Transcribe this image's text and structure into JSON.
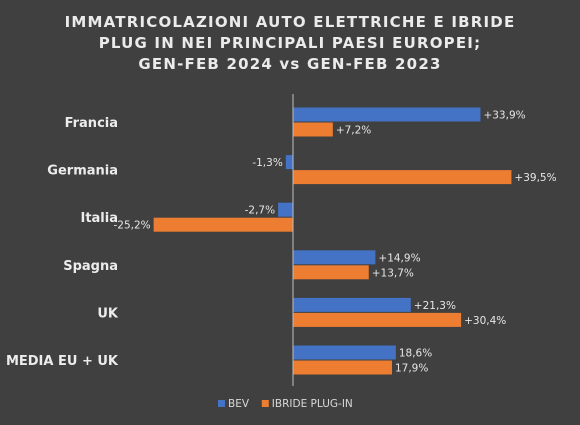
{
  "title_lines": [
    "IMMATRICOLAZIONI AUTO ELETTRICHE E IBRIDE",
    "PLUG IN NEI PRINCIPALI PAESI EUROPEI;",
    "GEN-FEB 2024 vs GEN-FEB 2023"
  ],
  "chart_data": {
    "type": "bar",
    "orientation": "horizontal",
    "title": "IMMATRICOLAZIONI AUTO ELETTRICHE E IBRIDE PLUG IN NEI PRINCIPALI PAESI EUROPEI; GEN-FEB 2024 vs GEN-FEB 2023",
    "categories": [
      "Francia",
      "Germania",
      "Italia",
      "Spagna",
      "UK",
      "MEDIA EU + UK"
    ],
    "series": [
      {
        "name": "BEV",
        "color": "#4472c4",
        "values": [
          33.9,
          -1.3,
          -2.7,
          14.9,
          21.3,
          18.6
        ],
        "labels": [
          "+33,9%",
          "-1,3%",
          "-2,7%",
          "+14,9%",
          "+21,3%",
          "18,6%"
        ]
      },
      {
        "name": "IBRIDE PLUG-IN",
        "color": "#ed7d31",
        "values": [
          7.2,
          39.5,
          -25.2,
          13.7,
          30.4,
          17.9
        ],
        "labels": [
          "+7,2%",
          "+39,5%",
          "-25,2%",
          "+13,7%",
          "+30,4%",
          "17,9%"
        ]
      }
    ],
    "xlim": [
      -30,
      45
    ],
    "grid": false,
    "legend_position": "bottom"
  }
}
